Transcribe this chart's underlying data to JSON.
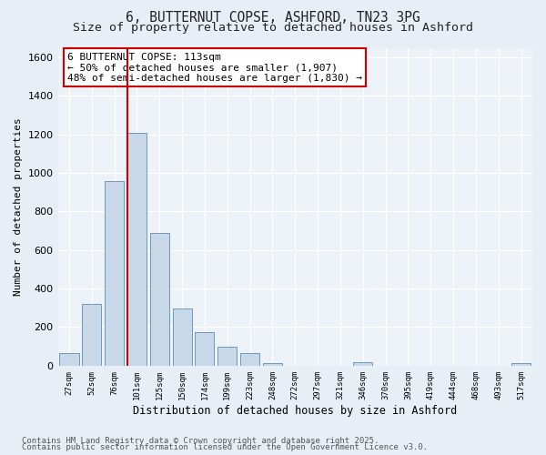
{
  "title_line1": "6, BUTTERNUT COPSE, ASHFORD, TN23 3PG",
  "title_line2": "Size of property relative to detached houses in Ashford",
  "xlabel": "Distribution of detached houses by size in Ashford",
  "ylabel": "Number of detached properties",
  "categories": [
    "27sqm",
    "52sqm",
    "76sqm",
    "101sqm",
    "125sqm",
    "150sqm",
    "174sqm",
    "199sqm",
    "223sqm",
    "248sqm",
    "272sqm",
    "297sqm",
    "321sqm",
    "346sqm",
    "370sqm",
    "395sqm",
    "419sqm",
    "444sqm",
    "468sqm",
    "493sqm",
    "517sqm"
  ],
  "values": [
    65,
    320,
    960,
    1210,
    690,
    295,
    175,
    100,
    65,
    15,
    0,
    0,
    0,
    20,
    0,
    0,
    0,
    0,
    0,
    0,
    15
  ],
  "bar_color": "#c8d8e8",
  "bar_edge_color": "#5b8db8",
  "highlight_line_color": "#cc0000",
  "vline_bar_index": 3,
  "annotation_line1": "6 BUTTERNUT COPSE: 113sqm",
  "annotation_line2": "← 50% of detached houses are smaller (1,907)",
  "annotation_line3": "48% of semi-detached houses are larger (1,830) →",
  "annotation_box_color": "#ffffff",
  "annotation_box_edge_color": "#cc0000",
  "annotation_fontsize": 8.0,
  "ylim": [
    0,
    1650
  ],
  "yticks": [
    0,
    200,
    400,
    600,
    800,
    1000,
    1200,
    1400,
    1600
  ],
  "bg_color": "#e8eef5",
  "plot_bg_color": "#edf2f8",
  "grid_color": "#ffffff",
  "footer_line1": "Contains HM Land Registry data © Crown copyright and database right 2025.",
  "footer_line2": "Contains public sector information licensed under the Open Government Licence v3.0.",
  "footer_fontsize": 6.5,
  "title_fontsize1": 10.5,
  "title_fontsize2": 9.5,
  "ylabel_fontsize": 8.0,
  "xlabel_fontsize": 8.5,
  "ytick_fontsize": 8.0,
  "xtick_fontsize": 6.5
}
